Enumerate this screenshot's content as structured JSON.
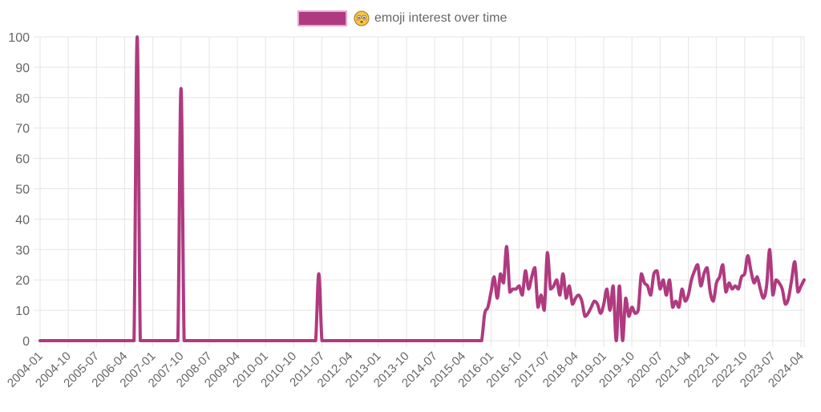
{
  "colors": {
    "line": "#b03a7f",
    "swatch_fill": "#b03a7f",
    "swatch_border": "#e6a9cc",
    "grid": "#e5e5e5",
    "tick_text": "#666666",
    "background": "#ffffff"
  },
  "legend": {
    "emoji": "😳",
    "emoji_icon": "flushed-face-icon",
    "label": "emoji interest over time"
  },
  "chart_data": {
    "type": "line",
    "title": "",
    "series_name": "😳 emoji interest over time",
    "xlabel": "",
    "ylabel": "",
    "ylim": [
      0,
      100
    ],
    "grid": true,
    "legend_position": "top",
    "y_ticks": [
      0,
      10,
      20,
      30,
      40,
      50,
      60,
      70,
      80,
      90,
      100
    ],
    "x_tick_labels": [
      "2004-01",
      "2004-10",
      "2005-07",
      "2006-04",
      "2007-01",
      "2007-10",
      "2008-07",
      "2009-04",
      "2010-01",
      "2010-10",
      "2011-07",
      "2012-04",
      "2013-01",
      "2013-10",
      "2014-07",
      "2015-04",
      "2016-01",
      "2016-10",
      "2017-07",
      "2018-04",
      "2019-01",
      "2019-10",
      "2020-07",
      "2021-04",
      "2022-01",
      "2022-10",
      "2023-07",
      "2024-04"
    ],
    "x_start": "2004-01",
    "x_end": "2024-04",
    "frequency": "monthly",
    "values": [
      0,
      0,
      0,
      0,
      0,
      0,
      0,
      0,
      0,
      0,
      0,
      0,
      0,
      0,
      0,
      0,
      0,
      0,
      0,
      0,
      0,
      0,
      0,
      0,
      0,
      0,
      0,
      0,
      0,
      0,
      0,
      100,
      0,
      0,
      0,
      0,
      0,
      0,
      0,
      0,
      0,
      0,
      0,
      0,
      0,
      83,
      0,
      0,
      0,
      0,
      0,
      0,
      0,
      0,
      0,
      0,
      0,
      0,
      0,
      0,
      0,
      0,
      0,
      0,
      0,
      0,
      0,
      0,
      0,
      0,
      0,
      0,
      0,
      0,
      0,
      0,
      0,
      0,
      0,
      0,
      0,
      0,
      0,
      0,
      0,
      0,
      0,
      0,
      0,
      22,
      0,
      0,
      0,
      0,
      0,
      0,
      0,
      0,
      0,
      0,
      0,
      0,
      0,
      0,
      0,
      0,
      0,
      0,
      0,
      0,
      0,
      0,
      0,
      0,
      0,
      0,
      0,
      0,
      0,
      0,
      0,
      0,
      0,
      0,
      0,
      0,
      0,
      0,
      0,
      0,
      0,
      0,
      0,
      0,
      0,
      0,
      0,
      0,
      0,
      0,
      0,
      0,
      9,
      11,
      16,
      21,
      14,
      22,
      19,
      31,
      16,
      17,
      17,
      18,
      15,
      23,
      17,
      21,
      24,
      11,
      15,
      10,
      29,
      17,
      18,
      20,
      15,
      22,
      14,
      18,
      12,
      14,
      15,
      13,
      8,
      9,
      11,
      13,
      12,
      9,
      12,
      17,
      10,
      18,
      0,
      18,
      0,
      14,
      8,
      11,
      9,
      10,
      22,
      19,
      18,
      15,
      22,
      23,
      17,
      20,
      15,
      20,
      11,
      13,
      11,
      17,
      13,
      15,
      20,
      23,
      25,
      18,
      22,
      24,
      16,
      13,
      19,
      21,
      25,
      16,
      19,
      17,
      18,
      17,
      21,
      22,
      28,
      23,
      19,
      21,
      17,
      14,
      18,
      30,
      15,
      20,
      19,
      17,
      12,
      14,
      20,
      26,
      16,
      18,
      20
    ]
  }
}
